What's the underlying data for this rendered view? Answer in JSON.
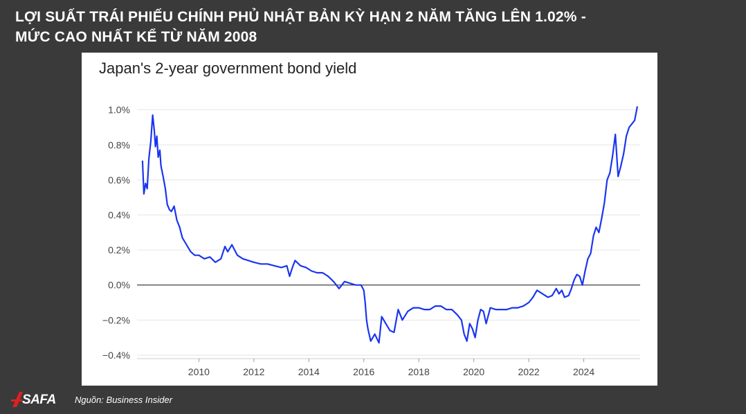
{
  "headline": {
    "line1": "LỢI SUẤT TRÁI PHIẾU CHÍNH PHỦ NHẬT BẢN KỲ HẠN 2 NĂM TĂNG LÊN 1.02% -",
    "line2": "MỨC CAO NHẤT KỂ TỪ NĂM 2008"
  },
  "colors": {
    "line": "#1a35f0",
    "background": "#3a3a3a",
    "card": "#ffffff",
    "grid": "#e6e6e6",
    "zero_line": "#111111",
    "logo_red": "#e02020"
  },
  "footer": {
    "logo_text": "SAFA",
    "source": "Nguồn: Business Insider"
  },
  "chart_data": {
    "type": "line",
    "title": "Japan's 2-year government bond yield",
    "xlabel": "",
    "ylabel": "",
    "xlim": [
      2007.75,
      2026.05
    ],
    "ylim": [
      -0.42,
      1.05
    ],
    "y_unit": "%",
    "x_ticks": [
      2010,
      2012,
      2014,
      2016,
      2018,
      2020,
      2022,
      2024
    ],
    "x_tick_labels": [
      "2010",
      "2012",
      "2014",
      "2016",
      "2018",
      "2020",
      "2022",
      "2024"
    ],
    "y_ticks": [
      1.0,
      0.8,
      0.6,
      0.4,
      0.2,
      0.0,
      -0.2,
      -0.4
    ],
    "y_tick_labels": [
      "1.0%",
      "0.8%",
      "0.6%",
      "0.4%",
      "0.2%",
      "0.0%",
      "−0.2%",
      "−0.4%"
    ],
    "grid": true,
    "reference_line": 0.0,
    "series": [
      {
        "name": "",
        "x": [
          2007.95,
          2008.0,
          2008.06,
          2008.12,
          2008.18,
          2008.25,
          2008.32,
          2008.38,
          2008.42,
          2008.47,
          2008.52,
          2008.58,
          2008.62,
          2008.7,
          2008.78,
          2008.85,
          2008.93,
          2009.0,
          2009.1,
          2009.2,
          2009.3,
          2009.4,
          2009.55,
          2009.7,
          2009.85,
          2010.0,
          2010.2,
          2010.4,
          2010.6,
          2010.8,
          2010.95,
          2011.05,
          2011.2,
          2011.4,
          2011.6,
          2011.8,
          2012.0,
          2012.25,
          2012.5,
          2012.75,
          2013.0,
          2013.2,
          2013.3,
          2013.4,
          2013.5,
          2013.7,
          2013.9,
          2014.1,
          2014.3,
          2014.5,
          2014.7,
          2014.9,
          2015.0,
          2015.1,
          2015.3,
          2015.5,
          2015.7,
          2015.9,
          2016.0,
          2016.05,
          2016.1,
          2016.15,
          2016.25,
          2016.4,
          2016.55,
          2016.65,
          2016.8,
          2016.95,
          2017.1,
          2017.25,
          2017.4,
          2017.6,
          2017.8,
          2018.0,
          2018.2,
          2018.4,
          2018.6,
          2018.8,
          2019.0,
          2019.2,
          2019.4,
          2019.55,
          2019.65,
          2019.75,
          2019.85,
          2019.95,
          2020.05,
          2020.15,
          2020.25,
          2020.35,
          2020.45,
          2020.6,
          2020.8,
          2021.0,
          2021.2,
          2021.4,
          2021.6,
          2021.8,
          2022.0,
          2022.15,
          2022.3,
          2022.5,
          2022.7,
          2022.85,
          2023.0,
          2023.1,
          2023.2,
          2023.3,
          2023.45,
          2023.55,
          2023.65,
          2023.75,
          2023.85,
          2023.95,
          2024.05,
          2024.15,
          2024.25,
          2024.35,
          2024.45,
          2024.55,
          2024.65,
          2024.75,
          2024.85,
          2024.95,
          2025.05,
          2025.15,
          2025.25,
          2025.35,
          2025.45,
          2025.55,
          2025.65,
          2025.75,
          2025.85,
          2025.95
        ],
        "values": [
          0.71,
          0.52,
          0.58,
          0.55,
          0.72,
          0.82,
          0.97,
          0.88,
          0.79,
          0.85,
          0.73,
          0.77,
          0.68,
          0.62,
          0.55,
          0.46,
          0.43,
          0.42,
          0.45,
          0.37,
          0.33,
          0.27,
          0.23,
          0.19,
          0.17,
          0.17,
          0.15,
          0.16,
          0.13,
          0.15,
          0.22,
          0.19,
          0.23,
          0.17,
          0.15,
          0.14,
          0.13,
          0.12,
          0.12,
          0.11,
          0.1,
          0.11,
          0.05,
          0.1,
          0.14,
          0.11,
          0.1,
          0.08,
          0.07,
          0.07,
          0.05,
          0.02,
          0.0,
          -0.02,
          0.02,
          0.01,
          0.0,
          0.0,
          -0.03,
          -0.1,
          -0.2,
          -0.25,
          -0.32,
          -0.28,
          -0.33,
          -0.18,
          -0.22,
          -0.26,
          -0.27,
          -0.14,
          -0.2,
          -0.15,
          -0.13,
          -0.13,
          -0.14,
          -0.14,
          -0.12,
          -0.12,
          -0.14,
          -0.14,
          -0.17,
          -0.2,
          -0.28,
          -0.32,
          -0.22,
          -0.25,
          -0.3,
          -0.2,
          -0.14,
          -0.15,
          -0.22,
          -0.13,
          -0.14,
          -0.14,
          -0.14,
          -0.13,
          -0.13,
          -0.12,
          -0.1,
          -0.07,
          -0.03,
          -0.05,
          -0.07,
          -0.06,
          -0.02,
          -0.05,
          -0.03,
          -0.07,
          -0.06,
          -0.02,
          0.03,
          0.06,
          0.05,
          0.0,
          0.08,
          0.15,
          0.18,
          0.28,
          0.33,
          0.3,
          0.38,
          0.47,
          0.6,
          0.64,
          0.74,
          0.86,
          0.62,
          0.68,
          0.75,
          0.85,
          0.9,
          0.92,
          0.94,
          1.02
        ]
      }
    ]
  }
}
